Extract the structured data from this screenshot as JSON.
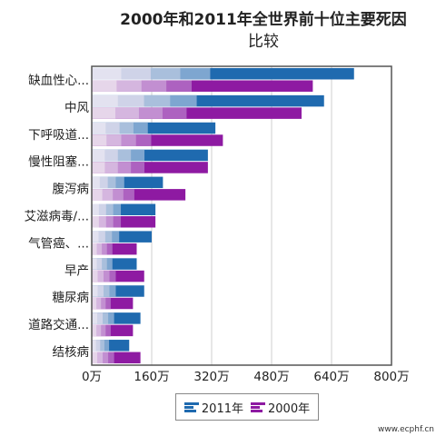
{
  "title_line1": "2000年和2011年全世界前十位主要死因",
  "title_line2": "比较",
  "watermark": "www.ecphf.cn",
  "legend": [
    {
      "label": "2011年",
      "color": "#1f6aaf",
      "icon": "bar-icon-blue"
    },
    {
      "label": "2000年",
      "color": "#8e1aa2",
      "icon": "bar-icon-purple"
    }
  ],
  "chart_data": {
    "type": "bar",
    "orientation": "horizontal",
    "title": "2000年和2011年全世界前十位主要死因比较",
    "categories": [
      "缺血性心...",
      "中风",
      "下呼吸道...",
      "慢性阻塞...",
      "腹泻病",
      "艾滋病毒/...",
      "气管癌、...",
      "早产",
      "糖尿病",
      "道路交通...",
      "结核病"
    ],
    "series": [
      {
        "name": "2011年",
        "color": "#1f6aaf",
        "values": [
          700,
          620,
          330,
          310,
          190,
          170,
          160,
          120,
          140,
          130,
          100
        ]
      },
      {
        "name": "2000年",
        "color": "#8e1aa2",
        "values": [
          590,
          560,
          350,
          310,
          250,
          170,
          120,
          140,
          110,
          110,
          130
        ]
      }
    ],
    "xlim": [
      0,
      800
    ],
    "xticks": [
      0,
      160,
      320,
      480,
      640,
      800
    ],
    "xtick_labels": [
      "0万",
      "160万",
      "320万",
      "480万",
      "640万",
      "800万"
    ],
    "grid": true,
    "legend_position": "bottom"
  }
}
